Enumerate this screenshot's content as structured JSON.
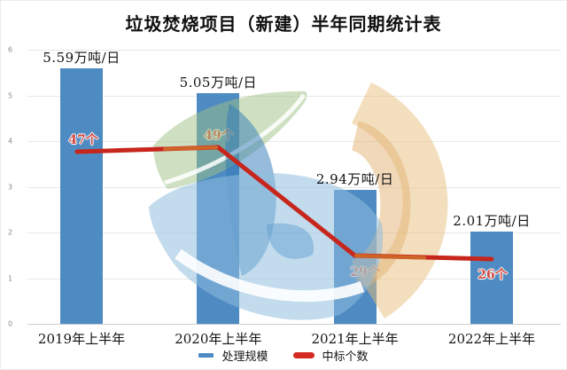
{
  "title": "垃圾焚烧项目（新建）半年同期统计表",
  "colors": {
    "bar": "#4e8bc3",
    "line": "#c7261c",
    "line_accent": "#cf6b2a",
    "count_label": "#cf4a43",
    "legend_line": "#d42a20",
    "grid": "#e8e8e8",
    "watermark_green": "#9dc183",
    "watermark_tan": "#e8bf7e",
    "watermark_blue_light": "#8fbede",
    "watermark_blue_mid": "#2f7ab8"
  },
  "y_axis": {
    "ticks": [
      "6",
      "5",
      "4",
      "3",
      "2",
      "1",
      "0"
    ],
    "min": 0,
    "max": 6
  },
  "chart_data": {
    "type": "bar",
    "title": "垃圾焚烧项目（新建）半年同期统计表",
    "categories": [
      "2019年上半年",
      "2020年上半年",
      "2021年上半年",
      "2022年上半年"
    ],
    "series": [
      {
        "name": "处理规模",
        "type": "bar",
        "unit": "万吨/日",
        "values": [
          5.59,
          5.05,
          2.94,
          2.01
        ],
        "labels": [
          "5.59万吨/日",
          "5.05万吨/日",
          "2.94万吨/日",
          "2.01万吨/日"
        ]
      },
      {
        "name": "中标个数",
        "type": "line",
        "unit": "个",
        "values": [
          47,
          49,
          29,
          26
        ],
        "labels": [
          "47个",
          "49个",
          "29个",
          "26个"
        ]
      }
    ],
    "ylim": [
      0,
      6
    ],
    "grid": true,
    "legend_position": "bottom"
  },
  "legend": {
    "items": [
      {
        "label": "处理规模",
        "type": "bar"
      },
      {
        "label": "中标个数",
        "type": "line"
      }
    ]
  }
}
